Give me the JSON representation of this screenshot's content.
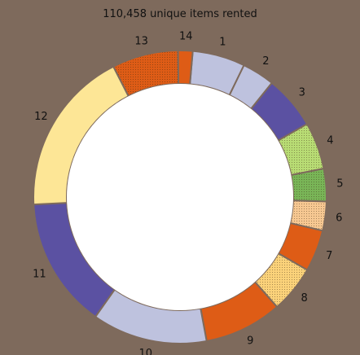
{
  "chart_data": {
    "type": "pie",
    "title": "110,458 unique items rented",
    "donut": true,
    "direction": "clockwise",
    "slices": [
      {
        "label": "1",
        "value": 5.8,
        "color": "#bec2de",
        "pattern": "none"
      },
      {
        "label": "2",
        "value": 3.6,
        "color": "#bec2de",
        "pattern": "none"
      },
      {
        "label": "3",
        "value": 5.9,
        "color": "#5b51a2",
        "pattern": "none"
      },
      {
        "label": "4",
        "value": 5.2,
        "color": "#b8dc74",
        "pattern": "dots"
      },
      {
        "label": "5",
        "value": 3.6,
        "color": "#79b557",
        "pattern": "dots"
      },
      {
        "label": "6",
        "value": 3.2,
        "color": "#f7c892",
        "pattern": "dots"
      },
      {
        "label": "7",
        "value": 4.6,
        "color": "#de5c16",
        "pattern": "none"
      },
      {
        "label": "8",
        "value": 5.2,
        "color": "#fbd27a",
        "pattern": "dots"
      },
      {
        "label": "9",
        "value": 8.6,
        "color": "#de5c16",
        "pattern": "none"
      },
      {
        "label": "10",
        "value": 12.7,
        "color": "#bec2de",
        "pattern": "none"
      },
      {
        "label": "11",
        "value": 14.4,
        "color": "#5b51a2",
        "pattern": "none"
      },
      {
        "label": "12",
        "value": 18.3,
        "color": "#fde696",
        "pattern": "none"
      },
      {
        "label": "13",
        "value": 7.3,
        "color": "#de5c16",
        "pattern": "dots"
      },
      {
        "label": "14",
        "value": 1.6,
        "color": "#de5c16",
        "pattern": "none"
      }
    ]
  }
}
